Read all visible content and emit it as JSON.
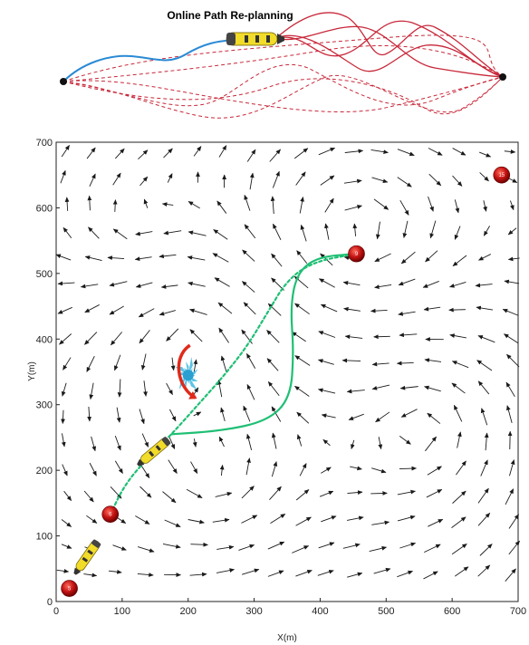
{
  "top_panel": {
    "title": "Online Path Re-planning"
  },
  "chart_data": {
    "type": "vector_field_with_path",
    "xlabel": "X(m)",
    "ylabel": "Y(m)",
    "xlim": [
      0,
      700
    ],
    "ylim": [
      0,
      700
    ],
    "x_ticks": [
      "0",
      "100",
      "200",
      "300",
      "400",
      "500",
      "600",
      "700"
    ],
    "y_ticks": [
      "0",
      "100",
      "200",
      "300",
      "400",
      "500",
      "600",
      "700"
    ],
    "waypoints": [
      {
        "label": "5",
        "x": 20,
        "y": 20
      },
      {
        "label": "6",
        "x": 82,
        "y": 133
      },
      {
        "label": "9",
        "x": 455,
        "y": 530
      },
      {
        "label": "15",
        "x": 675,
        "y": 650
      }
    ],
    "series": [
      {
        "style": "dashed",
        "color": "#1fbf74",
        "points": [
          [
            82,
            133
          ],
          [
            105,
            180
          ],
          [
            140,
            220
          ],
          [
            175,
            255
          ],
          [
            215,
            300
          ],
          [
            255,
            345
          ],
          [
            290,
            390
          ],
          [
            320,
            440
          ],
          [
            350,
            490
          ],
          [
            390,
            518
          ],
          [
            455,
            530
          ]
        ]
      },
      {
        "style": "solid",
        "color": "#1fbf74",
        "points": [
          [
            175,
            255
          ],
          [
            250,
            260
          ],
          [
            320,
            275
          ],
          [
            355,
            310
          ],
          [
            360,
            380
          ],
          [
            355,
            450
          ],
          [
            365,
            500
          ],
          [
            395,
            525
          ],
          [
            455,
            530
          ]
        ]
      }
    ],
    "vortices": [
      {
        "x": 200,
        "y": 410,
        "rotation": "counterclockwise",
        "strength": 1.2
      },
      {
        "x": 455,
        "y": 555,
        "rotation": "clockwise",
        "strength": 1.1
      },
      {
        "x": 560,
        "y": 270,
        "rotation": "counterclockwise",
        "strength": 1.0
      },
      {
        "x": 250,
        "y": 180,
        "rotation": "counterclockwise",
        "strength": 0.7
      },
      {
        "x": 120,
        "y": 560,
        "rotation": "clockwise",
        "strength": 0.6
      }
    ],
    "obstacle": {
      "x": 200,
      "y": 345
    },
    "colors": {
      "arrows": "#1a1a1a",
      "waypoint": "#c41414",
      "replanned_paths": "#c8283a",
      "original_path": "#2a8ad4",
      "auv_body": "#f2dc2a",
      "obstacle": "#3fb8e0",
      "turn_arrow": "#e02a1a"
    }
  }
}
